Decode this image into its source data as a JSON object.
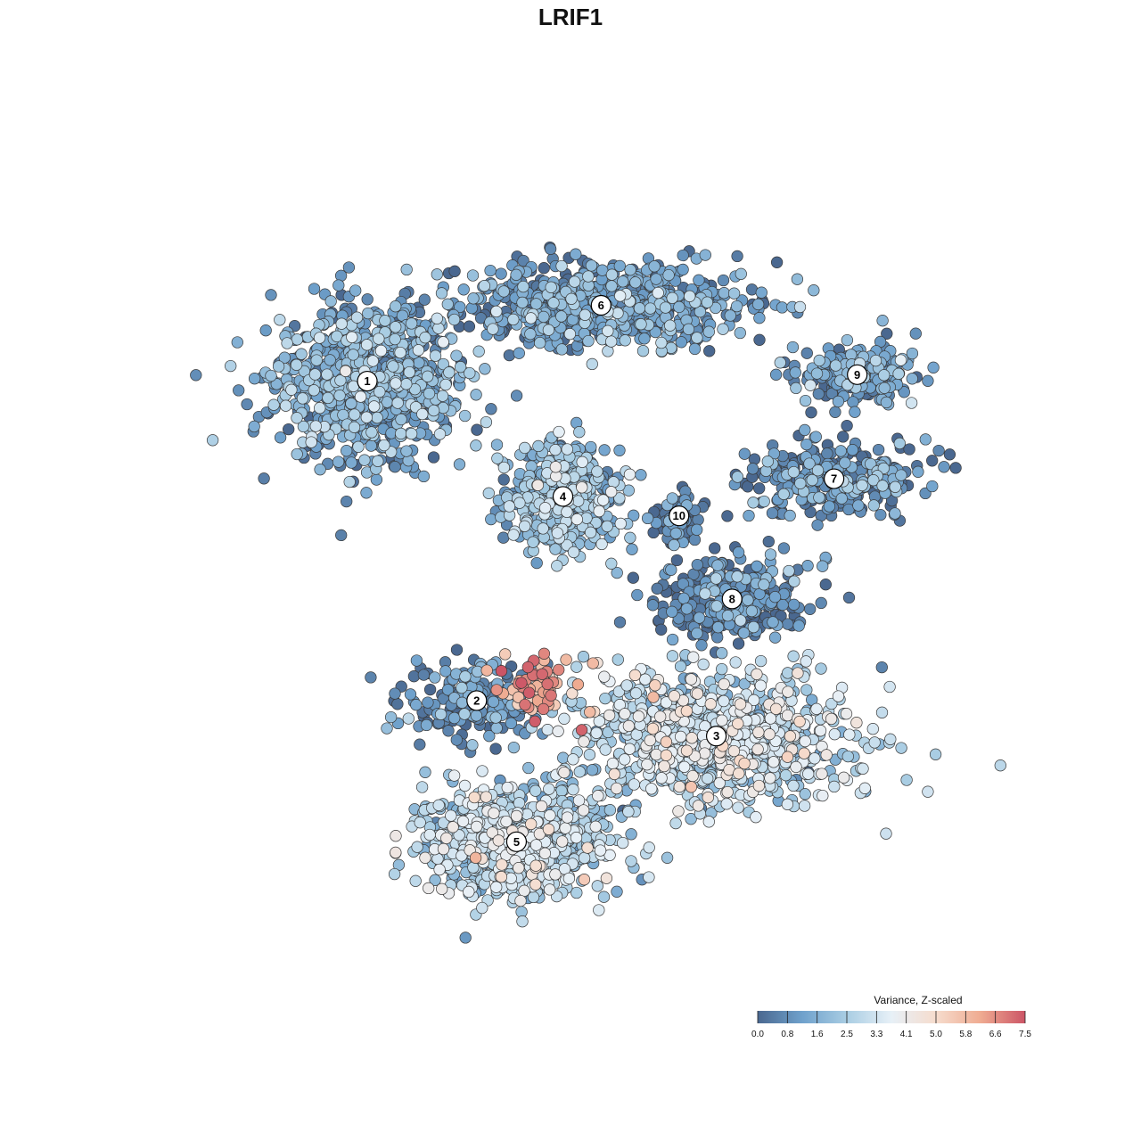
{
  "chart_data": {
    "type": "scatter",
    "title": "LRIF1",
    "xlabel": "",
    "ylabel": "",
    "grid": false,
    "colorbar": {
      "title": "Variance, Z-scaled",
      "min": 0.0,
      "max": 7.5,
      "ticks": [
        "0.0",
        "0.8",
        "1.6",
        "2.5",
        "3.3",
        "4.1",
        "5.0",
        "5.8",
        "6.6",
        "7.5"
      ],
      "placement": "bottom-right",
      "colors": [
        "#4a6890",
        "#6fa1cc",
        "#a9cde3",
        "#e7f0f7",
        "#f6dccd",
        "#efab91",
        "#cc5566"
      ]
    },
    "clusters": [
      {
        "label": "1",
        "x": 0.228,
        "y": 0.732,
        "spread_x": 0.11,
        "spread_y": 0.095,
        "n": 900,
        "mean_value": 1.3
      },
      {
        "label": "2",
        "x": 0.36,
        "y": 0.336,
        "spread_x": 0.085,
        "spread_y": 0.045,
        "n": 200,
        "mean_value": 0.6
      },
      {
        "label": "3",
        "x": 0.649,
        "y": 0.292,
        "spread_x": 0.16,
        "spread_y": 0.08,
        "n": 950,
        "mean_value": 2.9
      },
      {
        "label": "4",
        "x": 0.464,
        "y": 0.589,
        "spread_x": 0.07,
        "spread_y": 0.065,
        "n": 420,
        "mean_value": 1.9
      },
      {
        "label": "5",
        "x": 0.408,
        "y": 0.161,
        "spread_x": 0.11,
        "spread_y": 0.07,
        "n": 800,
        "mean_value": 2.6
      },
      {
        "label": "6",
        "x": 0.51,
        "y": 0.826,
        "spread_x": 0.17,
        "spread_y": 0.05,
        "n": 700,
        "mean_value": 1.1
      },
      {
        "label": "7",
        "x": 0.791,
        "y": 0.611,
        "spread_x": 0.11,
        "spread_y": 0.045,
        "n": 280,
        "mean_value": 0.8
      },
      {
        "label": "8",
        "x": 0.668,
        "y": 0.462,
        "spread_x": 0.09,
        "spread_y": 0.05,
        "n": 320,
        "mean_value": 0.5
      },
      {
        "label": "9",
        "x": 0.819,
        "y": 0.74,
        "spread_x": 0.07,
        "spread_y": 0.035,
        "n": 180,
        "mean_value": 1.1
      },
      {
        "label": "10",
        "x": 0.604,
        "y": 0.565,
        "spread_x": 0.025,
        "spread_y": 0.035,
        "n": 80,
        "mean_value": 0.3
      }
    ]
  }
}
